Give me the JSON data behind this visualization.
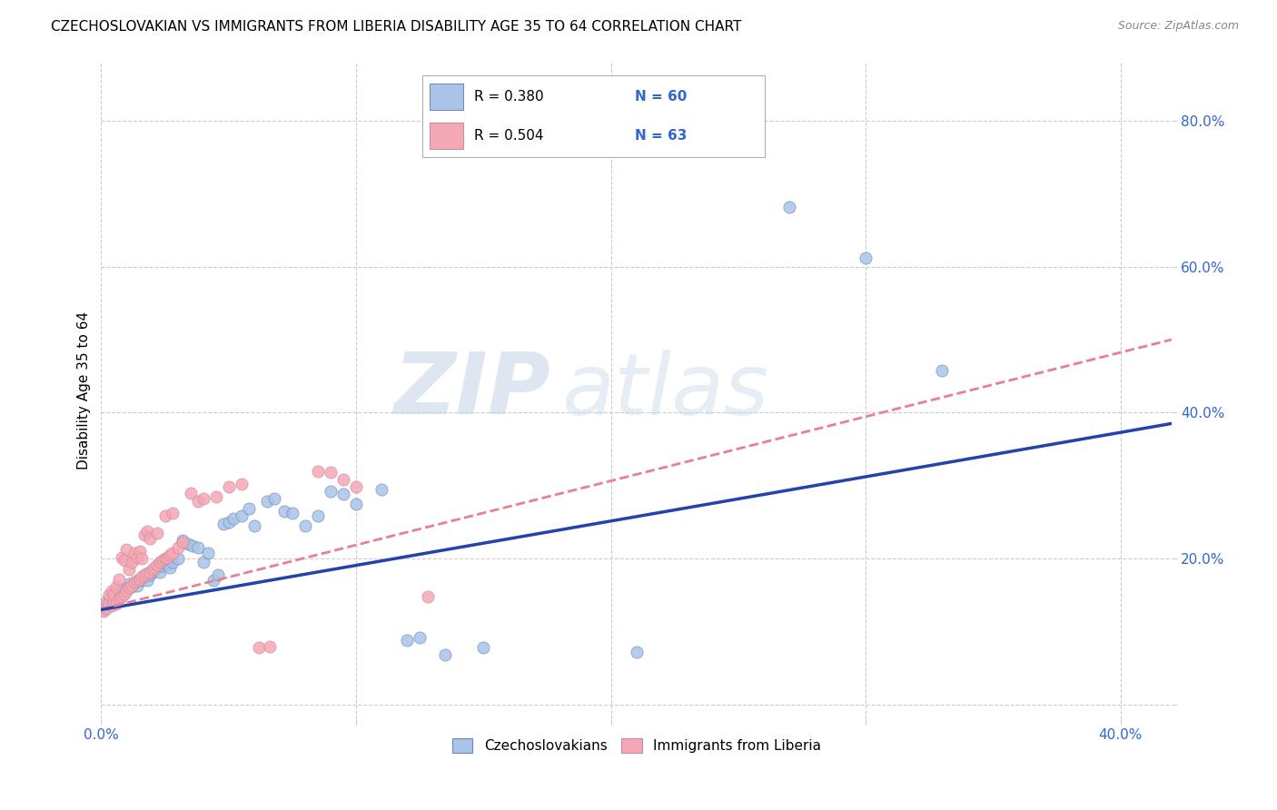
{
  "title": "CZECHOSLOVAKIAN VS IMMIGRANTS FROM LIBERIA DISABILITY AGE 35 TO 64 CORRELATION CHART",
  "source": "Source: ZipAtlas.com",
  "ylabel": "Disability Age 35 to 64",
  "xlim": [
    0.0,
    0.42
  ],
  "ylim": [
    -0.02,
    0.88
  ],
  "xticks": [
    0.0,
    0.1,
    0.2,
    0.3,
    0.4
  ],
  "xticklabels": [
    "0.0%",
    "",
    "",
    "",
    "40.0%"
  ],
  "yticks": [
    0.0,
    0.2,
    0.4,
    0.6,
    0.8
  ],
  "yticklabels": [
    "",
    "20.0%",
    "40.0%",
    "60.0%",
    "80.0%"
  ],
  "blue_color": "#aac4e8",
  "pink_color": "#f4a7b4",
  "blue_line_color": "#2244aa",
  "pink_line_color": "#e88090",
  "grid_color": "#cccccc",
  "watermark_zip": "ZIP",
  "watermark_atlas": "atlas",
  "blue_dots": [
    [
      0.001,
      0.13
    ],
    [
      0.002,
      0.138
    ],
    [
      0.003,
      0.142
    ],
    [
      0.004,
      0.148
    ],
    [
      0.005,
      0.145
    ],
    [
      0.006,
      0.15
    ],
    [
      0.007,
      0.155
    ],
    [
      0.008,
      0.152
    ],
    [
      0.009,
      0.158
    ],
    [
      0.01,
      0.16
    ],
    [
      0.011,
      0.165
    ],
    [
      0.012,
      0.162
    ],
    [
      0.013,
      0.168
    ],
    [
      0.014,
      0.163
    ],
    [
      0.015,
      0.17
    ],
    [
      0.016,
      0.172
    ],
    [
      0.017,
      0.175
    ],
    [
      0.018,
      0.17
    ],
    [
      0.019,
      0.178
    ],
    [
      0.02,
      0.182
    ],
    [
      0.021,
      0.185
    ],
    [
      0.022,
      0.188
    ],
    [
      0.023,
      0.182
    ],
    [
      0.024,
      0.19
    ],
    [
      0.025,
      0.195
    ],
    [
      0.026,
      0.192
    ],
    [
      0.027,
      0.188
    ],
    [
      0.028,
      0.195
    ],
    [
      0.03,
      0.2
    ],
    [
      0.032,
      0.225
    ],
    [
      0.034,
      0.22
    ],
    [
      0.036,
      0.218
    ],
    [
      0.038,
      0.215
    ],
    [
      0.04,
      0.195
    ],
    [
      0.042,
      0.208
    ],
    [
      0.044,
      0.17
    ],
    [
      0.046,
      0.178
    ],
    [
      0.048,
      0.248
    ],
    [
      0.05,
      0.25
    ],
    [
      0.052,
      0.255
    ],
    [
      0.055,
      0.258
    ],
    [
      0.058,
      0.268
    ],
    [
      0.06,
      0.245
    ],
    [
      0.065,
      0.278
    ],
    [
      0.068,
      0.282
    ],
    [
      0.072,
      0.265
    ],
    [
      0.075,
      0.262
    ],
    [
      0.08,
      0.245
    ],
    [
      0.085,
      0.258
    ],
    [
      0.09,
      0.292
    ],
    [
      0.095,
      0.288
    ],
    [
      0.1,
      0.275
    ],
    [
      0.11,
      0.295
    ],
    [
      0.12,
      0.088
    ],
    [
      0.125,
      0.092
    ],
    [
      0.135,
      0.068
    ],
    [
      0.15,
      0.078
    ],
    [
      0.21,
      0.072
    ],
    [
      0.27,
      0.682
    ],
    [
      0.3,
      0.612
    ],
    [
      0.33,
      0.458
    ]
  ],
  "pink_dots": [
    [
      0.001,
      0.128
    ],
    [
      0.002,
      0.132
    ],
    [
      0.002,
      0.142
    ],
    [
      0.003,
      0.138
    ],
    [
      0.003,
      0.15
    ],
    [
      0.004,
      0.135
    ],
    [
      0.004,
      0.155
    ],
    [
      0.005,
      0.14
    ],
    [
      0.005,
      0.15
    ],
    [
      0.006,
      0.138
    ],
    [
      0.006,
      0.162
    ],
    [
      0.007,
      0.145
    ],
    [
      0.007,
      0.172
    ],
    [
      0.008,
      0.148
    ],
    [
      0.008,
      0.202
    ],
    [
      0.009,
      0.152
    ],
    [
      0.009,
      0.198
    ],
    [
      0.01,
      0.155
    ],
    [
      0.01,
      0.212
    ],
    [
      0.011,
      0.16
    ],
    [
      0.011,
      0.185
    ],
    [
      0.012,
      0.163
    ],
    [
      0.012,
      0.195
    ],
    [
      0.013,
      0.168
    ],
    [
      0.013,
      0.208
    ],
    [
      0.014,
      0.17
    ],
    [
      0.014,
      0.202
    ],
    [
      0.015,
      0.172
    ],
    [
      0.015,
      0.21
    ],
    [
      0.016,
      0.175
    ],
    [
      0.016,
      0.2
    ],
    [
      0.017,
      0.178
    ],
    [
      0.017,
      0.232
    ],
    [
      0.018,
      0.18
    ],
    [
      0.018,
      0.238
    ],
    [
      0.019,
      0.182
    ],
    [
      0.019,
      0.228
    ],
    [
      0.02,
      0.185
    ],
    [
      0.021,
      0.188
    ],
    [
      0.022,
      0.192
    ],
    [
      0.022,
      0.235
    ],
    [
      0.023,
      0.195
    ],
    [
      0.024,
      0.198
    ],
    [
      0.025,
      0.2
    ],
    [
      0.025,
      0.258
    ],
    [
      0.026,
      0.202
    ],
    [
      0.027,
      0.205
    ],
    [
      0.028,
      0.208
    ],
    [
      0.028,
      0.262
    ],
    [
      0.03,
      0.215
    ],
    [
      0.032,
      0.222
    ],
    [
      0.035,
      0.29
    ],
    [
      0.038,
      0.278
    ],
    [
      0.04,
      0.282
    ],
    [
      0.045,
      0.285
    ],
    [
      0.05,
      0.298
    ],
    [
      0.055,
      0.302
    ],
    [
      0.062,
      0.078
    ],
    [
      0.066,
      0.08
    ],
    [
      0.085,
      0.32
    ],
    [
      0.09,
      0.318
    ],
    [
      0.095,
      0.308
    ],
    [
      0.1,
      0.298
    ],
    [
      0.128,
      0.148
    ]
  ],
  "blue_line": [
    [
      0.0,
      0.13
    ],
    [
      0.42,
      0.385
    ]
  ],
  "pink_line": [
    [
      0.005,
      0.135
    ],
    [
      0.42,
      0.5
    ]
  ],
  "title_fontsize": 11,
  "axis_label_fontsize": 11,
  "tick_fontsize": 11
}
